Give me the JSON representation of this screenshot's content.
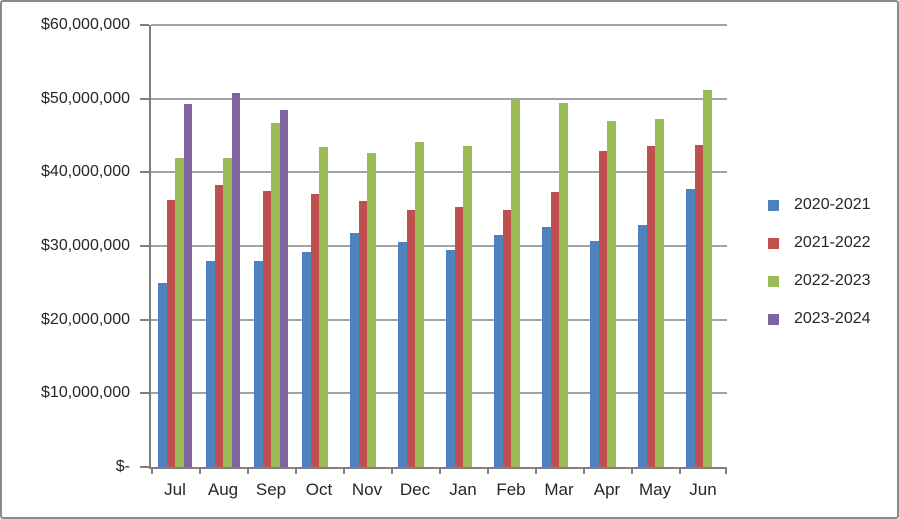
{
  "chart_data": {
    "type": "bar",
    "title": "",
    "xlabel": "",
    "ylabel": "",
    "categories": [
      "Jul",
      "Aug",
      "Sep",
      "Oct",
      "Nov",
      "Dec",
      "Jan",
      "Feb",
      "Mar",
      "Apr",
      "May",
      "Jun"
    ],
    "series": [
      {
        "name": "2020-2021",
        "color": "#4f81bd",
        "values": [
          25000000,
          27900000,
          27900000,
          29200000,
          31700000,
          30600000,
          29500000,
          31500000,
          32600000,
          30700000,
          32900000,
          37700000
        ]
      },
      {
        "name": "2021-2022",
        "color": "#c0504d",
        "values": [
          36200000,
          38300000,
          37500000,
          37000000,
          36100000,
          34900000,
          35300000,
          34900000,
          37300000,
          42900000,
          43600000,
          43700000
        ]
      },
      {
        "name": "2022-2023",
        "color": "#9bbb59",
        "values": [
          42000000,
          42000000,
          46700000,
          43400000,
          42600000,
          44100000,
          43600000,
          50000000,
          49400000,
          47000000,
          47300000,
          51200000
        ]
      },
      {
        "name": "2023-2024",
        "color": "#8064a2",
        "values": [
          49300000,
          50800000,
          48400000,
          null,
          null,
          null,
          null,
          null,
          null,
          null,
          null,
          null
        ]
      }
    ],
    "ylim": [
      0,
      60000000
    ],
    "ytick_step": 10000000,
    "ytick_labels": [
      "$-",
      "$10,000,000",
      "$20,000,000",
      "$30,000,000",
      "$40,000,000",
      "$50,000,000",
      "$60,000,000"
    ],
    "grid": true,
    "legend_position": "right"
  },
  "colors": {
    "gridline": "#a3a3a3",
    "axis": "#7f7f7f",
    "frame_border": "#8a8a8a",
    "text": "#262626",
    "background": "#ffffff"
  }
}
